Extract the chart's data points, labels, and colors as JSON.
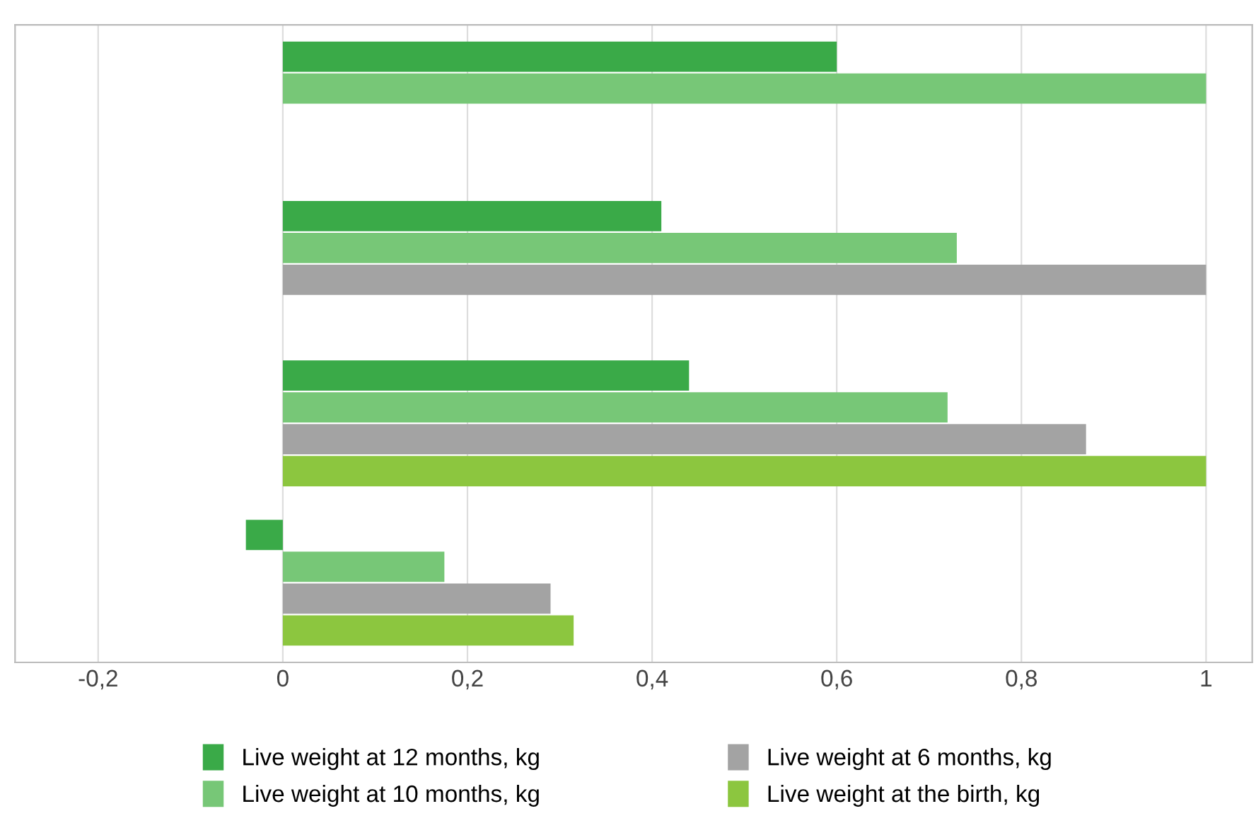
{
  "chart_data": {
    "type": "bar",
    "orientation": "horizontal",
    "categories": [
      null,
      null,
      null,
      null
    ],
    "series": [
      {
        "name": "Live weight at 12 months, kg",
        "color": "#3aaa48",
        "values": [
          0.6,
          0.41,
          0.44,
          -0.04
        ]
      },
      {
        "name": "Live weight at 10 months, kg",
        "color": "#77c777",
        "values": [
          1.0,
          0.73,
          0.72,
          0.175
        ]
      },
      {
        "name": "Live weight at 6 months, kg",
        "color": "#a3a3a3",
        "values": [
          null,
          1.0,
          0.87,
          0.29
        ]
      },
      {
        "name": "Live weight at the birth, kg",
        "color": "#8cc63f",
        "values": [
          null,
          null,
          1.0,
          0.315
        ]
      }
    ],
    "xlim": [
      -0.29,
      1.05
    ],
    "xticks": [
      {
        "value": -0.2,
        "label": "-0,2"
      },
      0,
      {
        "value": 0.2,
        "label": "0,2"
      },
      {
        "value": 0.4,
        "label": "0,4"
      },
      {
        "value": 0.6,
        "label": "0,6"
      },
      {
        "value": 0.8,
        "label": "0,8"
      },
      1
    ],
    "grid": "x",
    "legend": "bottom"
  }
}
